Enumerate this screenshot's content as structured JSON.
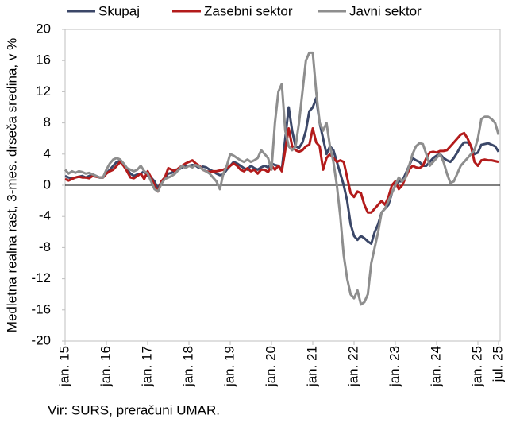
{
  "chart_data": {
    "type": "line",
    "y_label": "Medletna realna rast, 3-mes. drseča sredina, v %",
    "source": "Vir: SURS, preračuni UMAR.",
    "ylim": [
      -20,
      20
    ],
    "yticks": [
      20,
      16,
      12,
      8,
      4,
      0,
      -4,
      -8,
      -12,
      -16,
      -20
    ],
    "categories": [
      "jan. 15",
      null,
      null,
      null,
      null,
      null,
      null,
      null,
      null,
      null,
      null,
      null,
      "jan. 16",
      null,
      null,
      null,
      null,
      null,
      null,
      null,
      null,
      null,
      null,
      null,
      "jan. 17",
      null,
      null,
      null,
      null,
      null,
      null,
      null,
      null,
      null,
      null,
      null,
      "jan. 18",
      null,
      null,
      null,
      null,
      null,
      null,
      null,
      null,
      null,
      null,
      null,
      "jan. 19",
      null,
      null,
      null,
      null,
      null,
      null,
      null,
      null,
      null,
      null,
      null,
      "jan. 20",
      null,
      null,
      null,
      null,
      null,
      null,
      null,
      null,
      null,
      null,
      null,
      "jan. 21",
      null,
      null,
      null,
      null,
      null,
      null,
      null,
      null,
      null,
      null,
      null,
      "jan. 22",
      null,
      null,
      null,
      null,
      null,
      null,
      null,
      null,
      null,
      null,
      null,
      "jan. 23",
      null,
      null,
      null,
      null,
      null,
      null,
      null,
      null,
      null,
      null,
      null,
      "jan. 24",
      null,
      null,
      null,
      null,
      null,
      null,
      null,
      null,
      null,
      null,
      null,
      "jan. 25",
      null,
      null,
      null,
      null,
      null,
      "jul. 25"
    ],
    "series": [
      {
        "name": "Skupaj",
        "color": "#3b4768",
        "values": [
          1.2,
          1.0,
          0.9,
          1.0,
          1.1,
          1.2,
          1.0,
          1.2,
          1.4,
          1.2,
          1.0,
          1.0,
          1.5,
          2.0,
          2.5,
          3.0,
          3.1,
          2.8,
          2.0,
          1.5,
          1.2,
          1.4,
          1.5,
          1.8,
          1.2,
          1.0,
          0.5,
          -0.5,
          0.5,
          1.0,
          1.5,
          1.6,
          2.0,
          2.0,
          2.3,
          2.5,
          2.5,
          2.6,
          2.5,
          2.2,
          2.4,
          2.3,
          2.0,
          1.8,
          1.5,
          1.3,
          1.4,
          2.0,
          2.5,
          3.0,
          2.8,
          2.5,
          2.2,
          2.0,
          2.5,
          2.2,
          2.0,
          2.3,
          2.5,
          2.3,
          2.8,
          2.6,
          2.5,
          2.0,
          6.0,
          10.0,
          7.0,
          5.0,
          4.8,
          5.5,
          7.0,
          9.5,
          10.0,
          11.2,
          8.0,
          6.0,
          4.0,
          5.0,
          4.5,
          3.0,
          1.5,
          0,
          -2.0,
          -5.0,
          -6.5,
          -7.0,
          -6.5,
          -6.8,
          -7.2,
          -7.5,
          -6.0,
          -5.0,
          -3.5,
          -3.0,
          -2.5,
          -1.0,
          0,
          0.5,
          0.5,
          1.5,
          2.5,
          3.5,
          3.2,
          3.0,
          2.5,
          2.5,
          3.0,
          3.5,
          3.8,
          4.0,
          3.5,
          3.2,
          3.0,
          3.5,
          4.2,
          5.0,
          5.5,
          5.5,
          5.0,
          4.0,
          4.2,
          5.2,
          5.3,
          5.4,
          5.2,
          5.0,
          4.3
        ]
      },
      {
        "name": "Zasebni sektor",
        "color": "#b31b1b",
        "values": [
          0.8,
          0.6,
          0.8,
          1.0,
          1.1,
          1.0,
          1.0,
          0.9,
          1.2,
          1.1,
          1.0,
          1.0,
          1.5,
          1.8,
          2.0,
          2.5,
          3.0,
          2.5,
          1.8,
          1.0,
          0.9,
          1.2,
          1.5,
          0.8,
          1.8,
          1.0,
          0,
          -0.8,
          0.5,
          1.0,
          2.2,
          2.0,
          1.8,
          2.2,
          2.5,
          2.8,
          3.0,
          3.2,
          2.8,
          2.5,
          2.0,
          1.8,
          1.7,
          1.8,
          1.8,
          1.9,
          2.0,
          2.2,
          2.5,
          2.8,
          2.5,
          2.0,
          1.8,
          2.2,
          1.8,
          2.0,
          1.5,
          2.0,
          2.0,
          1.7,
          2.5,
          2.0,
          2.5,
          1.8,
          4.5,
          7.3,
          5.0,
          4.5,
          4.3,
          4.5,
          5.0,
          5.2,
          7.3,
          5.5,
          5.0,
          2.0,
          3.5,
          4.0,
          3.5,
          3.0,
          3.2,
          3.0,
          1.0,
          -1.0,
          -1.5,
          -0.8,
          -1.0,
          -2.5,
          -3.5,
          -3.5,
          -3.0,
          -2.5,
          -2.0,
          -2.5,
          -1.5,
          0,
          0.5,
          -0.5,
          0,
          1.0,
          2.0,
          2.5,
          2.3,
          2.2,
          2.5,
          3.5,
          4.2,
          4.3,
          4.2,
          4.4,
          4.4,
          4.5,
          5.0,
          5.5,
          6.0,
          6.5,
          6.7,
          6.0,
          5.0,
          3.0,
          2.5,
          3.2,
          3.3,
          3.2,
          3.2,
          3.1,
          3.0
        ]
      },
      {
        "name": "Javni sektor",
        "color": "#8e8e8e",
        "values": [
          2.0,
          1.5,
          1.8,
          1.6,
          1.8,
          1.7,
          1.5,
          1.6,
          1.4,
          1.2,
          1.0,
          1.0,
          2.0,
          2.8,
          3.3,
          3.5,
          3.3,
          2.8,
          2.2,
          2.0,
          1.8,
          2.0,
          2.5,
          1.8,
          1.5,
          0.5,
          -0.5,
          -0.8,
          0.2,
          0.8,
          1.0,
          1.2,
          1.5,
          2.0,
          2.5,
          2.2,
          2.5,
          2.3,
          2.6,
          2.4,
          2.0,
          1.8,
          1.5,
          1.0,
          0.5,
          -0.5,
          1.5,
          2.5,
          4.0,
          3.8,
          3.5,
          3.2,
          3.0,
          3.3,
          3.0,
          3.2,
          3.5,
          4.5,
          4.0,
          3.5,
          2.0,
          8.0,
          12.0,
          13.0,
          7.0,
          5.0,
          4.5,
          5.0,
          8.0,
          12.0,
          16.0,
          17.0,
          17.0,
          12.0,
          8.0,
          7.0,
          8.0,
          5.0,
          3.0,
          0,
          -4.0,
          -9.0,
          -12.0,
          -14.0,
          -14.5,
          -13.5,
          -15.3,
          -15.0,
          -14.0,
          -10.0,
          -8.0,
          -6.0,
          -3.5,
          -3.0,
          -2.0,
          -1.0,
          0,
          1.0,
          0.5,
          1.0,
          2.5,
          4.0,
          5.0,
          5.4,
          5.3,
          4.0,
          2.5,
          3.0,
          3.5,
          4.0,
          3.0,
          1.5,
          0.3,
          0.5,
          1.5,
          2.5,
          3.0,
          3.5,
          4.0,
          4.5,
          6.0,
          8.5,
          8.8,
          8.8,
          8.5,
          8.0,
          6.5
        ]
      }
    ]
  }
}
